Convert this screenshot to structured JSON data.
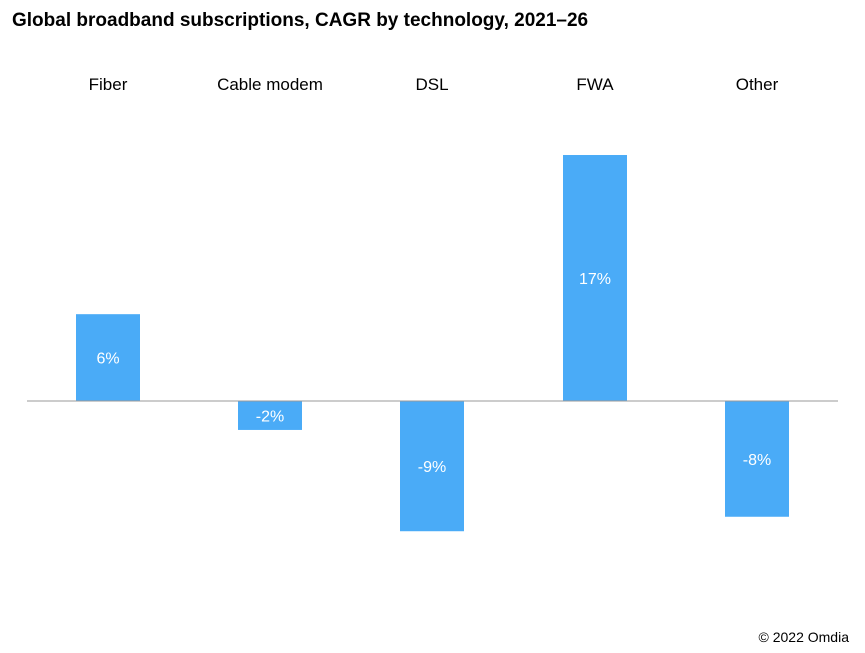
{
  "title": "Global broadband  subscriptions,  CAGR by technology, 2021–26",
  "credit": "© 2022 Omdia",
  "chart_data": {
    "type": "bar",
    "title": "Global broadband  subscriptions,  CAGR by technology, 2021–26",
    "categories": [
      "Fiber",
      "Cable modem",
      "DSL",
      "FWA",
      "Other"
    ],
    "values": [
      6,
      -2,
      -9,
      17,
      -8
    ],
    "data_labels": [
      "6%",
      "-2%",
      "-9%",
      "17%",
      "-8%"
    ],
    "unit": "%",
    "xlabel": "",
    "ylabel": "",
    "grid": false,
    "bar_color": "#4aabf7",
    "axis_color": "#999999",
    "label_color": "#ffffff"
  }
}
